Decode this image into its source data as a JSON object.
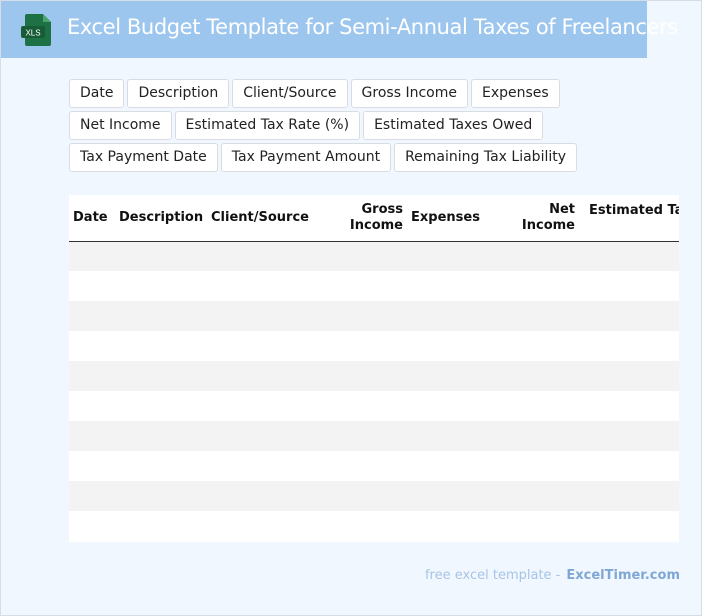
{
  "header": {
    "title": "Excel Budget Template for Semi-Annual Taxes of Freelancers",
    "logo_text": "XLS",
    "background": "#9dc6ee",
    "logo_color": "#1e7145"
  },
  "chips": [
    "Date",
    "Description",
    "Client/Source",
    "Gross Income",
    "Expenses",
    "Net Income",
    "Estimated Tax Rate (%)",
    "Estimated Taxes Owed",
    "Tax Payment Date",
    "Tax Payment Amount",
    "Remaining Tax Liability"
  ],
  "table": {
    "headers": {
      "date": "Date",
      "description": "Description",
      "client_source": "Client/Source",
      "gross_income": "Gross Income",
      "expenses": "Expenses",
      "net_income": "Net Income",
      "estimated_tax": "Estimated Ta"
    },
    "rows": [
      [
        "",
        "",
        "",
        "",
        "",
        "",
        ""
      ],
      [
        "",
        "",
        "",
        "",
        "",
        "",
        ""
      ],
      [
        "",
        "",
        "",
        "",
        "",
        "",
        ""
      ],
      [
        "",
        "",
        "",
        "",
        "",
        "",
        ""
      ],
      [
        "",
        "",
        "",
        "",
        "",
        "",
        ""
      ],
      [
        "",
        "",
        "",
        "",
        "",
        "",
        ""
      ],
      [
        "",
        "",
        "",
        "",
        "",
        "",
        ""
      ],
      [
        "",
        "",
        "",
        "",
        "",
        "",
        ""
      ],
      [
        "",
        "",
        "",
        "",
        "",
        "",
        ""
      ],
      [
        "",
        "",
        "",
        "",
        "",
        "",
        ""
      ]
    ]
  },
  "footer": {
    "prefix": "free excel template -",
    "brand": "ExcelTimer.com"
  }
}
